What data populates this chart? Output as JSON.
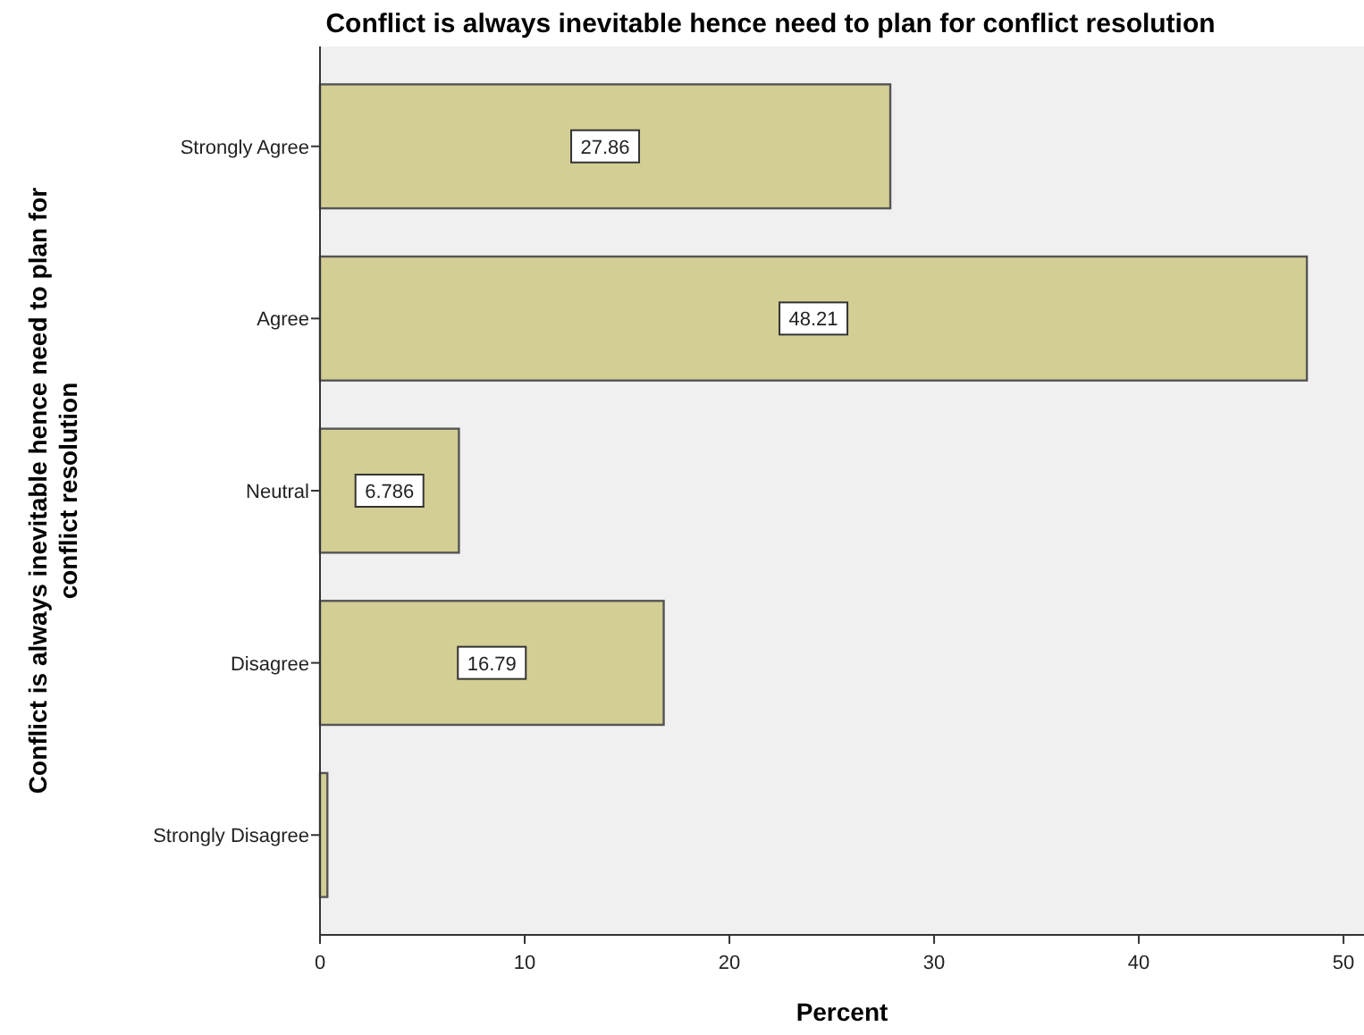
{
  "chart_data": {
    "type": "bar",
    "orientation": "horizontal",
    "title": "Conflict is always inevitable hence need to plan for conflict resolution",
    "xlabel": "Percent",
    "ylabel": "Conflict is always inevitable hence need to plan for conflict resolution",
    "categories": [
      "Strongly Agree",
      "Agree",
      "Neutral",
      "Disagree",
      "Strongly Disagree"
    ],
    "values": [
      27.86,
      48.21,
      6.786,
      16.79,
      0.36
    ],
    "value_labels": [
      "27.86",
      "48.21",
      "6.786",
      "16.79",
      null
    ],
    "color": "#d3ce94",
    "xlim": [
      0,
      51
    ],
    "xticks": [
      0,
      10,
      20,
      30,
      40,
      50
    ],
    "grid": false
  }
}
